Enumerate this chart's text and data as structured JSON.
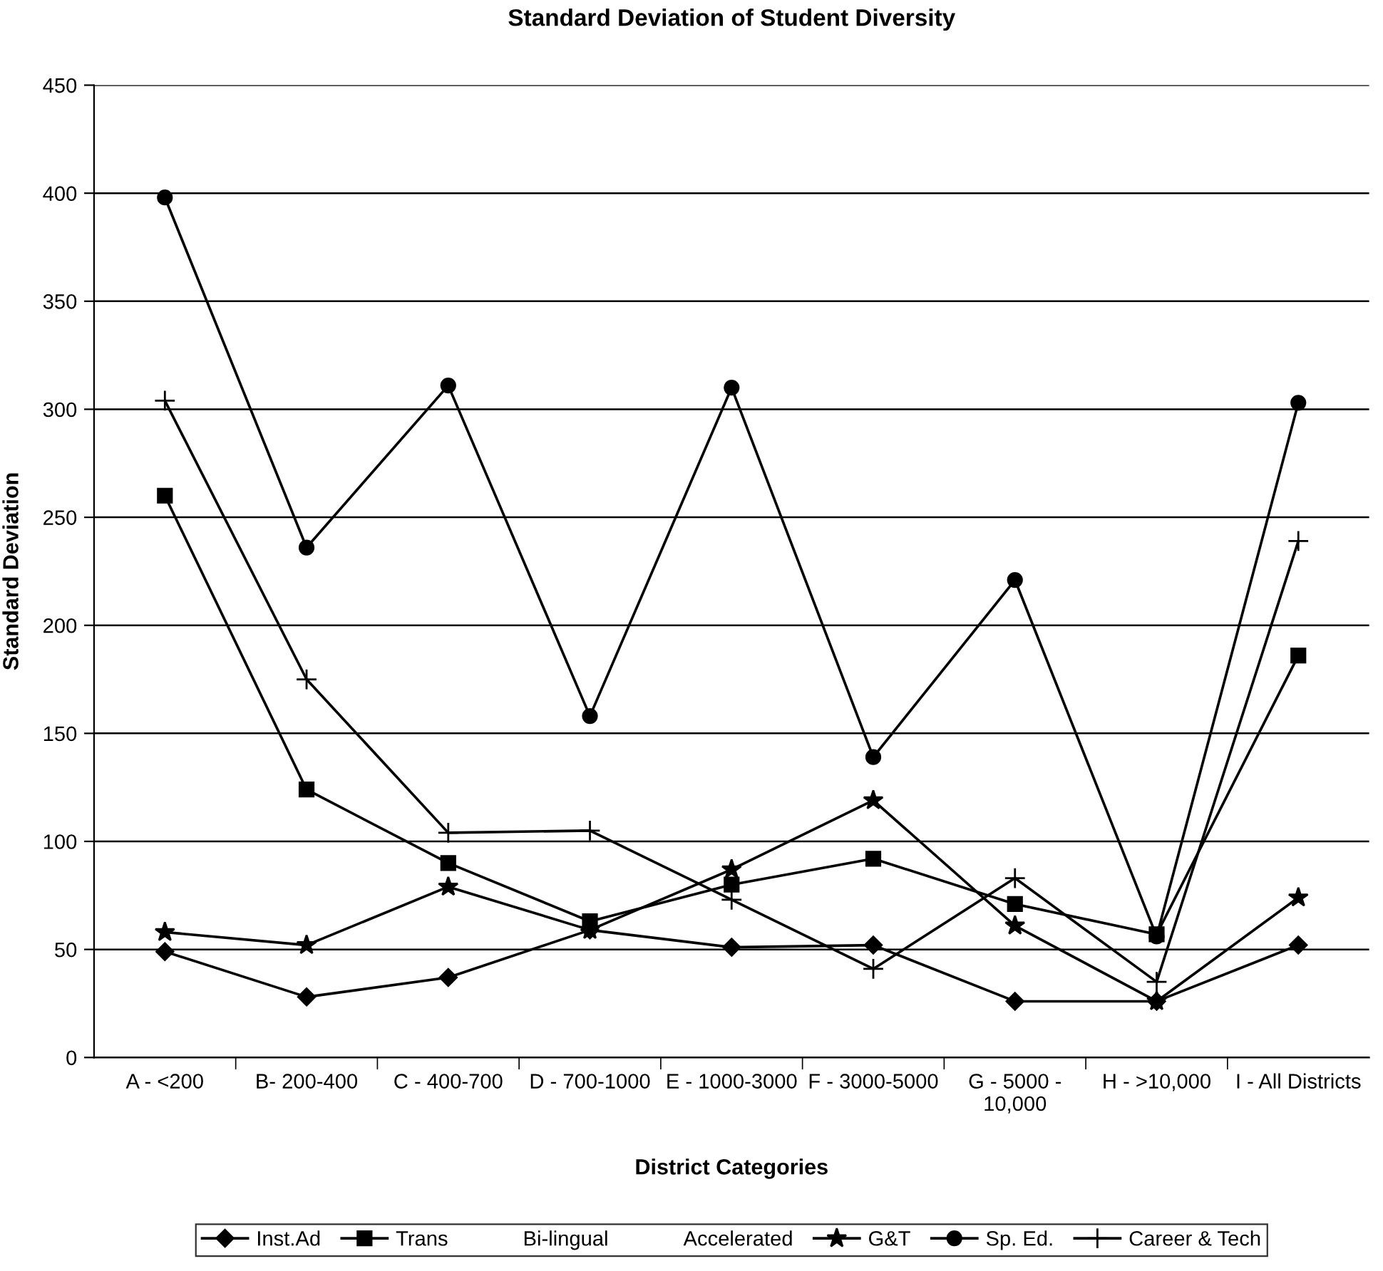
{
  "chart_data": {
    "type": "line",
    "title": "Standard Deviation of Student Diversity",
    "xlabel": "District Categories",
    "ylabel": "Standard Deviation",
    "categories": [
      "A - <200",
      "B- 200-400",
      "C - 400-700",
      "D - 700-1000",
      "E - 1000-3000",
      "F - 3000-5000",
      "G - 5000 -\n10,000",
      "H - >10,000",
      "I - All Districts"
    ],
    "series": [
      {
        "name": "Inst.Ad",
        "color": "#000000",
        "marker": "diamond",
        "values": [
          49,
          28,
          37,
          59,
          51,
          52,
          26,
          26,
          52
        ]
      },
      {
        "name": "Trans",
        "color": "#000000",
        "marker": "square",
        "values": [
          260,
          124,
          90,
          63,
          80,
          92,
          71,
          57,
          186
        ]
      },
      {
        "name": "Bi-lingual",
        "values": [
          null,
          null,
          null,
          null,
          null,
          null,
          null,
          null,
          null
        ]
      },
      {
        "name": "Accelerated",
        "values": [
          null,
          null,
          null,
          null,
          null,
          null,
          null,
          null,
          null
        ]
      },
      {
        "name": "G&T",
        "color": "#000000",
        "marker": "star",
        "values": [
          58,
          52,
          79,
          59,
          87,
          119,
          61,
          26,
          74
        ]
      },
      {
        "name": "Sp. Ed.",
        "color": "#000000",
        "marker": "circle",
        "values": [
          398,
          236,
          311,
          158,
          310,
          139,
          221,
          56,
          303
        ]
      },
      {
        "name": "Career & Tech",
        "color": "#000000",
        "marker": "cross",
        "values": [
          304,
          175,
          104,
          105,
          73,
          41,
          83,
          35,
          239
        ]
      }
    ],
    "ylim": [
      0,
      450
    ],
    "yticks": [
      0,
      50,
      100,
      150,
      200,
      250,
      300,
      350,
      400,
      450
    ],
    "grid": "y",
    "legend": "bottom",
    "line_style": "solid"
  }
}
